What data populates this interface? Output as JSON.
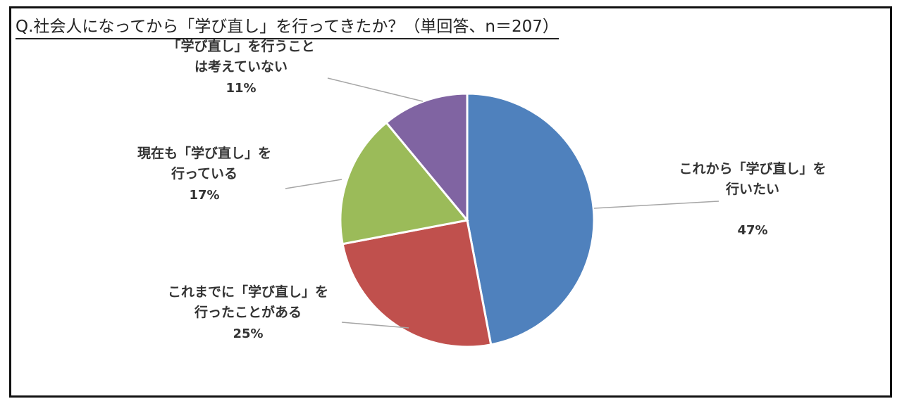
{
  "chart_data": {
    "type": "pie",
    "title": "Q.社会人になってから「学び直し」を行ってきたか？（単回答、n＝207）",
    "slices": [
      {
        "label_lines": [
          "これから「学び直し」を",
          "行いたい"
        ],
        "pct_label": "47%",
        "value": 47,
        "color": "#4f81bd"
      },
      {
        "label_lines": [
          "これまでに「学び直し」を",
          "行ったことがある"
        ],
        "pct_label": "25%",
        "value": 25,
        "color": "#c0504d"
      },
      {
        "label_lines": [
          "現在も「学び直し」を",
          "行っている"
        ],
        "pct_label": "17%",
        "value": 17,
        "color": "#9bbb59"
      },
      {
        "label_lines": [
          "「学び直し」を行うこと",
          "は考えていない"
        ],
        "pct_label": "11%",
        "value": 11,
        "color": "#8064a2"
      }
    ],
    "start_angle_deg": 0,
    "direction": "clockwise"
  }
}
